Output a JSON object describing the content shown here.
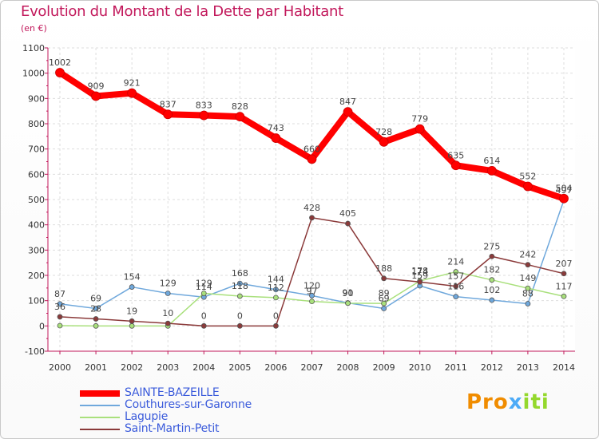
{
  "title": "Evolution du Montant de la Dette par Habitant",
  "subtitle": "(en €)",
  "logo": {
    "part1": "Pro",
    "part2": "x",
    "part3": "iti"
  },
  "chart_data": {
    "type": "line",
    "x": [
      "2000",
      "2001",
      "2002",
      "2003",
      "2004",
      "2005",
      "2006",
      "2007",
      "2008",
      "2009",
      "2010",
      "2011",
      "2012",
      "2013",
      "2014"
    ],
    "ylim": [
      -100,
      1100
    ],
    "yticks": [
      "-100",
      "0",
      "100",
      "200",
      "300",
      "400",
      "500",
      "600",
      "700",
      "800",
      "900",
      "1000",
      "1100"
    ],
    "grid": true,
    "legend_position": "bottom-left",
    "series": [
      {
        "name": "SAINTE-BAZEILLE",
        "color": "#ff0000",
        "values": [
          1002,
          909,
          921,
          837,
          833,
          828,
          743,
          660,
          847,
          728,
          779,
          635,
          614,
          552,
          504
        ],
        "labels": [
          "1002",
          "909",
          "921",
          "837",
          "833",
          "828",
          "743",
          "660",
          "847",
          "728",
          "779",
          "635",
          "614",
          "552",
          "504"
        ]
      },
      {
        "name": "Couthures-sur-Garonne",
        "color": "#6fa8dc",
        "values": [
          87,
          69,
          154,
          129,
          114,
          168,
          144,
          120,
          91,
          69,
          159,
          116,
          102,
          88,
          497
        ],
        "labels": [
          "87",
          "69",
          "154",
          "129",
          "114",
          "168",
          "144",
          "120",
          "91",
          "69",
          "159",
          "116",
          "102",
          "88",
          "497"
        ]
      },
      {
        "name": "Lagupie",
        "color": "#a9e07c",
        "values": [
          1,
          0,
          0,
          0,
          129,
          118,
          112,
          97,
          90,
          89,
          178,
          214,
          182,
          149,
          117
        ],
        "labels": [
          "",
          "",
          "",
          "",
          "129",
          "118",
          "112",
          "97",
          "90",
          "89",
          "178",
          "214",
          "182",
          "149",
          "117"
        ]
      },
      {
        "name": "Saint-Martin-Petit",
        "color": "#8b3a3a",
        "values": [
          36,
          28,
          19,
          10,
          0,
          0,
          0,
          428,
          405,
          188,
          174,
          157,
          275,
          242,
          207
        ],
        "labels": [
          "36",
          "28",
          "19",
          "10",
          "0",
          "0",
          "0",
          "428",
          "405",
          "188",
          "174",
          "157",
          "275",
          "242",
          "207"
        ]
      }
    ]
  }
}
